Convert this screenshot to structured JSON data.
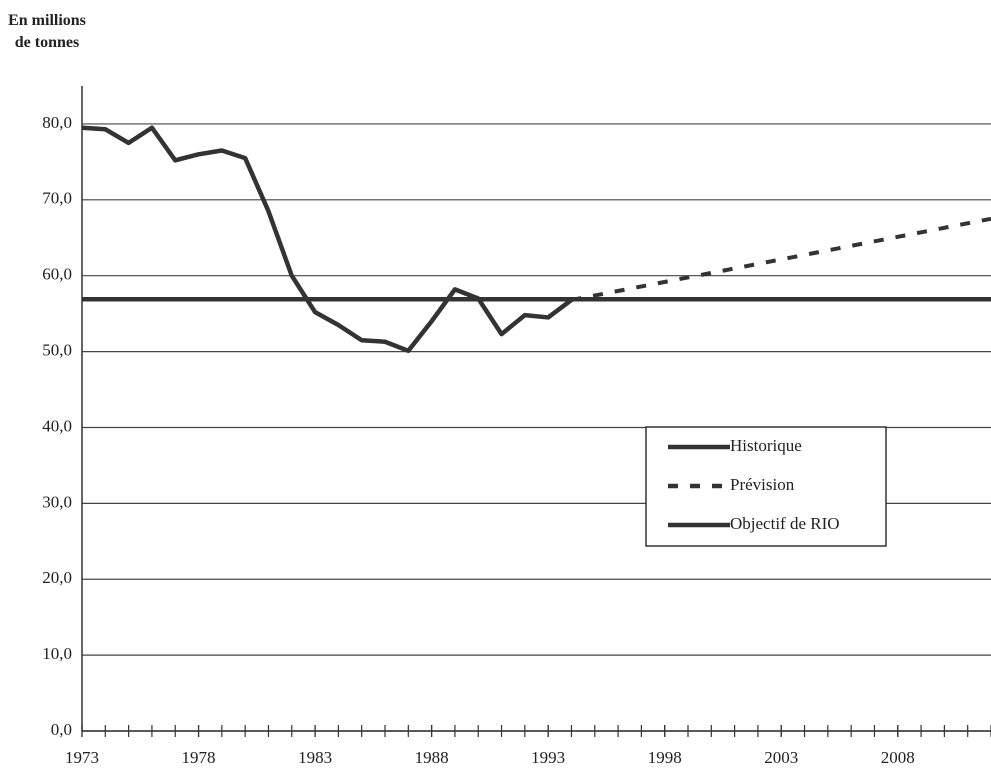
{
  "chart_data": {
    "type": "line",
    "ylabel": "En millions de tonnes",
    "xlim": [
      1973,
      2012
    ],
    "xticks": [
      1973,
      1978,
      1983,
      1988,
      1993,
      1998,
      2003,
      2008
    ],
    "ylim": [
      0,
      85
    ],
    "yticks": [
      {
        "value": 0,
        "label": "0,0"
      },
      {
        "value": 10,
        "label": "10,0"
      },
      {
        "value": 20,
        "label": "20,0"
      },
      {
        "value": 30,
        "label": "30,0"
      },
      {
        "value": 40,
        "label": "40,0"
      },
      {
        "value": 50,
        "label": "50,0"
      },
      {
        "value": 60,
        "label": "60,0"
      },
      {
        "value": 70,
        "label": "70,0"
      },
      {
        "value": 80,
        "label": "80,0"
      }
    ],
    "grid": true,
    "legend": "right",
    "series": [
      {
        "name": "Historique",
        "color": "#333333",
        "dash": false,
        "x": [
          1973,
          1974,
          1975,
          1976,
          1977,
          1978,
          1979,
          1980,
          1981,
          1982,
          1983,
          1984,
          1985,
          1986,
          1987,
          1988,
          1989,
          1990,
          1991,
          1992,
          1993,
          1994
        ],
        "values": [
          79.5,
          79.3,
          77.5,
          79.5,
          75.2,
          76.0,
          76.5,
          75.5,
          68.5,
          60.0,
          55.2,
          53.5,
          51.5,
          51.3,
          50.1,
          54.0,
          58.2,
          57.0,
          52.3,
          54.8,
          54.5,
          56.8
        ]
      },
      {
        "name": "Prévision",
        "color": "#333333",
        "dash": true,
        "x": [
          1994,
          2012
        ],
        "values": [
          56.8,
          67.5
        ]
      },
      {
        "name": "Objectif de RIO",
        "color": "#333333",
        "dash": false,
        "x": [
          1973,
          2012
        ],
        "values": [
          56.9,
          56.9
        ]
      }
    ]
  }
}
